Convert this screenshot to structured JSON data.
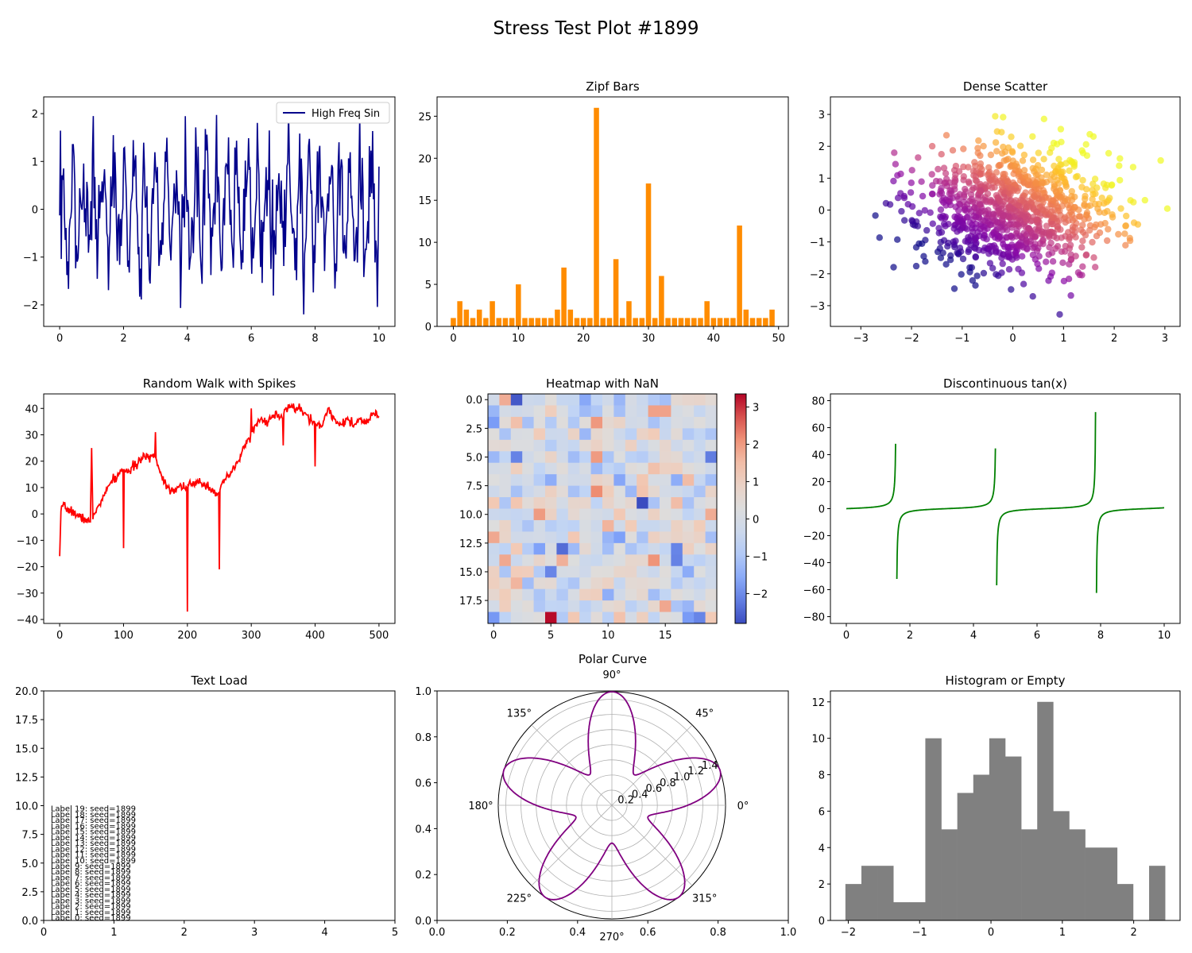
{
  "figure": {
    "title": "Stress Test Plot #1899"
  },
  "chart_data": [
    {
      "id": "p1",
      "type": "line",
      "title": "",
      "legend": {
        "entries": [
          "High Freq Sin"
        ],
        "placement": "upper right"
      },
      "xlim": [
        -0.5,
        10.5
      ],
      "ylim": [
        -2.45,
        2.35
      ],
      "xticks": [
        0,
        2,
        4,
        6,
        8,
        10
      ],
      "xtick_labels": [
        "0",
        "2",
        "4",
        "6",
        "8",
        "10"
      ],
      "yticks": [
        -2,
        -1,
        0,
        1,
        2
      ],
      "ytick_labels": [
        "−2",
        "−1",
        "0",
        "1",
        "2"
      ],
      "series": [
        {
          "name": "High Freq Sin",
          "color": "#00008b",
          "points": 400,
          "x_range": [
            0,
            10
          ],
          "description_values": "noisy high-frequency sinusoid between about -2.2 and 2.1"
        }
      ]
    },
    {
      "id": "p2",
      "type": "bar",
      "title": "Zipf Bars",
      "xlim": [
        -2.5,
        51.5
      ],
      "ylim": [
        0,
        27.3
      ],
      "xticks": [
        0,
        10,
        20,
        30,
        40,
        50
      ],
      "xtick_labels": [
        "0",
        "10",
        "20",
        "30",
        "40",
        "50"
      ],
      "yticks": [
        0,
        5,
        10,
        15,
        20,
        25
      ],
      "ytick_labels": [
        "0",
        "5",
        "10",
        "15",
        "20",
        "25"
      ],
      "color": "#ff8c00",
      "categories": [
        0,
        1,
        2,
        3,
        4,
        5,
        6,
        7,
        8,
        9,
        10,
        11,
        12,
        13,
        14,
        15,
        16,
        17,
        18,
        19,
        20,
        21,
        22,
        23,
        24,
        25,
        26,
        27,
        28,
        29,
        30,
        31,
        32,
        33,
        34,
        35,
        36,
        37,
        38,
        39,
        40,
        41,
        42,
        43,
        44,
        45,
        46,
        47,
        48,
        49
      ],
      "values": [
        1,
        3,
        2,
        1,
        2,
        1,
        3,
        1,
        1,
        1,
        5,
        1,
        1,
        1,
        1,
        1,
        2,
        7,
        2,
        1,
        1,
        1,
        26,
        1,
        1,
        8,
        1,
        3,
        1,
        1,
        17,
        1,
        6,
        1,
        1,
        1,
        1,
        1,
        1,
        3,
        1,
        1,
        1,
        1,
        12,
        2,
        1,
        1,
        1,
        2
      ]
    },
    {
      "id": "p3",
      "type": "scatter",
      "title": "Dense Scatter",
      "xlim": [
        -3.6,
        3.3
      ],
      "ylim": [
        -3.65,
        3.55
      ],
      "xticks": [
        -3,
        -2,
        -1,
        0,
        1,
        2,
        3
      ],
      "xtick_labels": [
        "−3",
        "−2",
        "−1",
        "0",
        "1",
        "2",
        "3"
      ],
      "yticks": [
        -3,
        -2,
        -1,
        0,
        1,
        2,
        3
      ],
      "ytick_labels": [
        "−3",
        "−2",
        "−1",
        "0",
        "1",
        "2",
        "3"
      ],
      "colormap": "plasma",
      "n_points": 1000,
      "alpha": 0.7
    },
    {
      "id": "p4",
      "type": "line",
      "title": "Random Walk with Spikes",
      "xlim": [
        -25,
        525
      ],
      "ylim": [
        -41.5,
        45.5
      ],
      "xticks": [
        0,
        100,
        200,
        300,
        400,
        500
      ],
      "xtick_labels": [
        "0",
        "100",
        "200",
        "300",
        "400",
        "500"
      ],
      "yticks": [
        -40,
        -30,
        -20,
        -10,
        0,
        10,
        20,
        30,
        40
      ],
      "ytick_labels": [
        "−40",
        "−30",
        "−20",
        "−10",
        "0",
        "10",
        "20",
        "30",
        "40"
      ],
      "color": "#ff0000",
      "anchors": [
        [
          0,
          -16
        ],
        [
          2,
          1
        ],
        [
          5,
          3
        ],
        [
          10,
          2
        ],
        [
          20,
          1
        ],
        [
          30,
          -1
        ],
        [
          40,
          -2
        ],
        [
          48,
          -3
        ],
        [
          50,
          25
        ],
        [
          52,
          -2
        ],
        [
          60,
          3
        ],
        [
          70,
          7
        ],
        [
          80,
          12
        ],
        [
          90,
          14
        ],
        [
          99,
          17
        ],
        [
          100,
          -13
        ],
        [
          101,
          17
        ],
        [
          110,
          16
        ],
        [
          120,
          19
        ],
        [
          130,
          21
        ],
        [
          140,
          22
        ],
        [
          149,
          22
        ],
        [
          150,
          31
        ],
        [
          151,
          21
        ],
        [
          160,
          14
        ],
        [
          170,
          10
        ],
        [
          180,
          9
        ],
        [
          190,
          11
        ],
        [
          199,
          10
        ],
        [
          200,
          -37
        ],
        [
          201,
          11
        ],
        [
          210,
          11
        ],
        [
          220,
          12
        ],
        [
          230,
          11
        ],
        [
          240,
          9
        ],
        [
          249,
          8
        ],
        [
          250,
          -21
        ],
        [
          251,
          9
        ],
        [
          260,
          13
        ],
        [
          270,
          16
        ],
        [
          280,
          20
        ],
        [
          290,
          26
        ],
        [
          299,
          30
        ],
        [
          300,
          40
        ],
        [
          301,
          31
        ],
        [
          310,
          35
        ],
        [
          320,
          35
        ],
        [
          330,
          36
        ],
        [
          340,
          38
        ],
        [
          349,
          36
        ],
        [
          350,
          26
        ],
        [
          351,
          38
        ],
        [
          360,
          41
        ],
        [
          370,
          40
        ],
        [
          380,
          39
        ],
        [
          390,
          36
        ],
        [
          399,
          35
        ],
        [
          400,
          18
        ],
        [
          401,
          34
        ],
        [
          410,
          33
        ],
        [
          420,
          40
        ],
        [
          430,
          36
        ],
        [
          440,
          34
        ],
        [
          450,
          36
        ],
        [
          460,
          33
        ],
        [
          470,
          36
        ],
        [
          480,
          34
        ],
        [
          490,
          38
        ],
        [
          500,
          37
        ]
      ],
      "spikes_at": [
        50,
        100,
        150,
        200,
        250,
        300,
        350,
        400
      ]
    },
    {
      "id": "p5",
      "type": "heatmap",
      "title": "Heatmap with NaN",
      "rows": 20,
      "cols": 20,
      "xticks": [
        0,
        5,
        10,
        15
      ],
      "xtick_labels": [
        "0",
        "5",
        "10",
        "15"
      ],
      "yticks": [
        0,
        2.5,
        5,
        7.5,
        10,
        12.5,
        15,
        17.5
      ],
      "ytick_labels": [
        "0.0",
        "2.5",
        "5.0",
        "7.5",
        "10.0",
        "12.5",
        "15.0",
        "17.5"
      ],
      "colormap": "coolwarm",
      "vmin": -2.8,
      "vmax": 3.35,
      "colorbar_ticks": [
        -2,
        -1,
        0,
        1,
        2,
        3
      ],
      "colorbar_tick_labels": [
        "−2",
        "−1",
        "0",
        "1",
        "2",
        "3"
      ],
      "notable_cells": [
        [
          19,
          5,
          3.3
        ],
        [
          9,
          13,
          -2.8
        ],
        [
          13,
          6,
          -2.4
        ],
        [
          13,
          16,
          -2.1
        ],
        [
          19,
          18,
          -2.1
        ],
        [
          5,
          9,
          2.0
        ],
        [
          8,
          9,
          2.2
        ],
        [
          10,
          4,
          2.0
        ],
        [
          12,
          0,
          1.8
        ],
        [
          14,
          14,
          2.1
        ],
        [
          5,
          19,
          -2.2
        ],
        [
          0,
          8,
          -1.6
        ]
      ]
    },
    {
      "id": "p6",
      "type": "line",
      "title": "Discontinuous tan(x)",
      "xlim": [
        -0.5,
        10.5
      ],
      "ylim": [
        -85,
        85
      ],
      "xticks": [
        0,
        2,
        4,
        6,
        8,
        10
      ],
      "xtick_labels": [
        "0",
        "2",
        "4",
        "6",
        "8",
        "10"
      ],
      "yticks": [
        -80,
        -60,
        -40,
        -20,
        0,
        20,
        40,
        60,
        80
      ],
      "ytick_labels": [
        "−80",
        "−60",
        "−40",
        "−20",
        "0",
        "20",
        "40",
        "60",
        "80"
      ],
      "color": "#008000",
      "function": "tan(x)",
      "clip": 80
    },
    {
      "id": "p7",
      "type": "text",
      "title": "Text Load",
      "xlim": [
        0,
        5
      ],
      "ylim": [
        0,
        20
      ],
      "xticks": [
        0,
        1,
        2,
        3,
        4,
        5
      ],
      "xtick_labels": [
        "0",
        "1",
        "2",
        "3",
        "4",
        "5"
      ],
      "yticks": [
        0,
        2.5,
        5,
        7.5,
        10,
        12.5,
        15,
        17.5,
        20
      ],
      "ytick_labels": [
        "0.0",
        "2.5",
        "5.0",
        "7.5",
        "10.0",
        "12.5",
        "15.0",
        "17.5",
        "20.0"
      ],
      "labels": [
        "Label 0: seed=1899",
        "Label 1: seed=1899",
        "Label 2: seed=1899",
        "Label 3: seed=1899",
        "Label 4: seed=1899",
        "Label 5: seed=1899",
        "Label 6: seed=1899",
        "Label 7: seed=1899",
        "Label 8: seed=1899",
        "Label 9: seed=1899",
        "Label 10: seed=1899",
        "Label 11: seed=1899",
        "Label 12: seed=1899",
        "Label 13: seed=1899",
        "Label 14: seed=1899",
        "Label 15: seed=1899",
        "Label 16: seed=1899",
        "Label 17: seed=1899",
        "Label 18: seed=1899",
        "Label 19: seed=1899"
      ],
      "label_x": 0.1,
      "label_y_start": 0,
      "label_y_step": 0.5
    },
    {
      "id": "p8",
      "type": "polar",
      "title": "Polar Curve",
      "xlim": [
        0,
        1
      ],
      "ylim": [
        0,
        1
      ],
      "xticks": [
        0,
        0.2,
        0.4,
        0.6,
        0.8,
        1.0
      ],
      "xtick_labels": [
        "0.0",
        "0.2",
        "0.4",
        "0.6",
        "0.8",
        "1.0"
      ],
      "yticks": [
        0,
        0.2,
        0.4,
        0.6,
        0.8,
        1.0
      ],
      "ytick_labels": [
        "0.0",
        "0.2",
        "0.4",
        "0.6",
        "0.8",
        "1.0"
      ],
      "angle_labels": [
        "0°",
        "45°",
        "90°",
        "135°",
        "180°",
        "225°",
        "270°",
        "315°"
      ],
      "radial_ticks": [
        0.2,
        0.4,
        0.6,
        0.8,
        1.0,
        1.2,
        1.4
      ],
      "radial_tick_labels": [
        "0.2",
        "0.4",
        "0.6",
        "0.8",
        "1.0",
        "1.2",
        "1.4"
      ],
      "rmax": 1.5,
      "color": "#800080",
      "function": "r = 1 + 0.5*sin(5*theta)"
    },
    {
      "id": "p9",
      "type": "bar",
      "title": "Histogram or Empty",
      "xlim": [
        -2.25,
        2.65
      ],
      "ylim": [
        0,
        12.6
      ],
      "xticks": [
        -2,
        -1,
        0,
        1,
        2
      ],
      "xtick_labels": [
        "−2",
        "−1",
        "0",
        "1",
        "2"
      ],
      "yticks": [
        0,
        2,
        4,
        6,
        8,
        10,
        12
      ],
      "ytick_labels": [
        "0",
        "2",
        "4",
        "6",
        "8",
        "10",
        "12"
      ],
      "color": "#808080",
      "bin_start": -2.04,
      "bin_width": 0.224,
      "counts": [
        2,
        3,
        3,
        1,
        1,
        10,
        5,
        7,
        8,
        10,
        9,
        5,
        12,
        6,
        5,
        4,
        4,
        2,
        0,
        3
      ]
    }
  ]
}
